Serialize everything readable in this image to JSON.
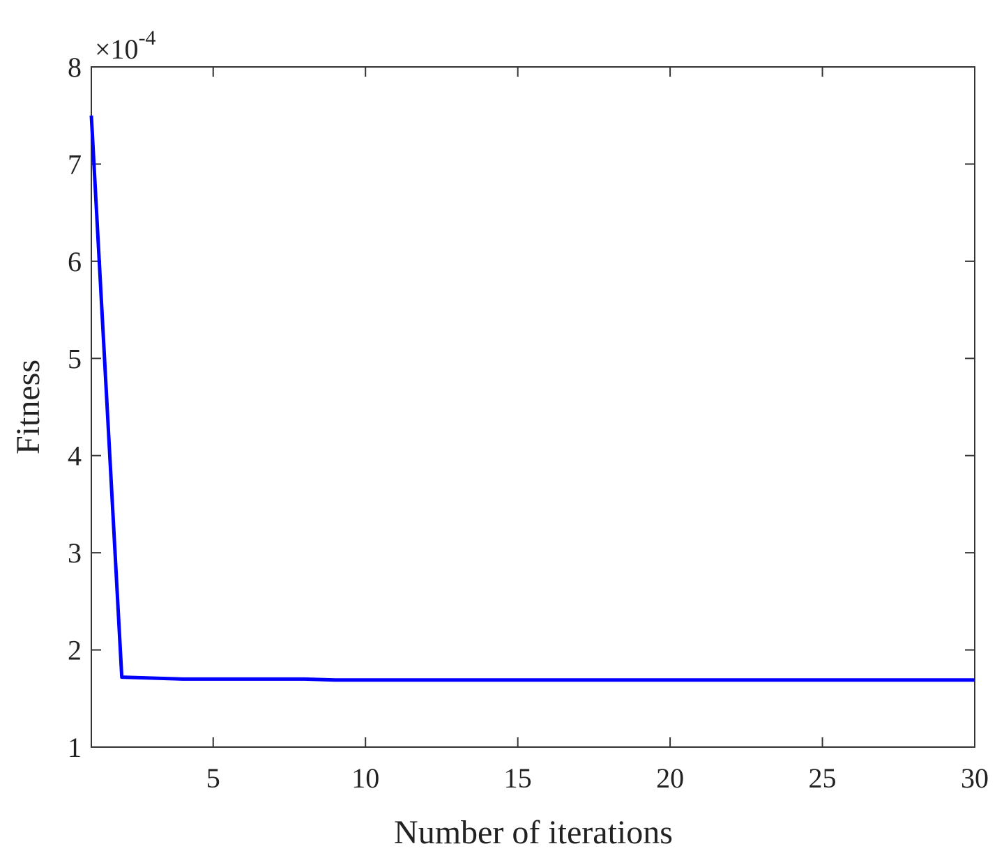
{
  "chart_data": {
    "type": "line",
    "x": [
      1,
      2,
      3,
      4,
      5,
      6,
      7,
      8,
      9,
      10,
      11,
      12,
      13,
      14,
      15,
      16,
      17,
      18,
      19,
      20,
      21,
      22,
      23,
      24,
      25,
      26,
      27,
      28,
      29,
      30
    ],
    "values": [
      7.5,
      1.72,
      1.71,
      1.7,
      1.7,
      1.7,
      1.7,
      1.7,
      1.69,
      1.69,
      1.69,
      1.69,
      1.69,
      1.69,
      1.69,
      1.69,
      1.69,
      1.69,
      1.69,
      1.69,
      1.69,
      1.69,
      1.69,
      1.69,
      1.69,
      1.69,
      1.69,
      1.69,
      1.69,
      1.69
    ],
    "color": "#0000ff",
    "xlabel": "Number of iterations",
    "ylabel": "Fitness",
    "y_exponent_label": {
      "base": "×10",
      "exponent": "-4"
    },
    "xlim": [
      1,
      30
    ],
    "xticks": [
      5,
      10,
      15,
      20,
      25,
      30
    ],
    "ylim": [
      1,
      8
    ],
    "yticks": [
      1,
      2,
      3,
      4,
      5,
      6,
      7,
      8
    ],
    "grid": false
  }
}
